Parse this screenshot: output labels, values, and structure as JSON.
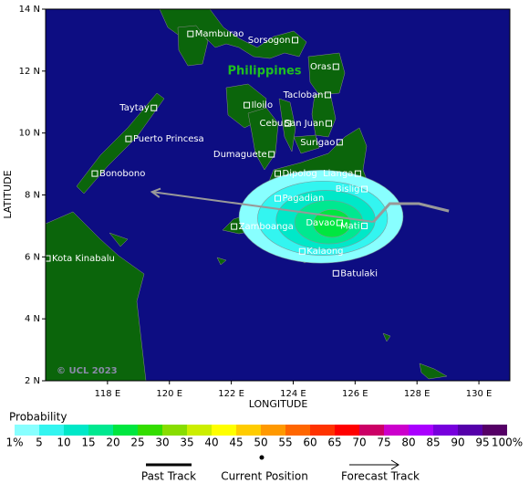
{
  "map": {
    "xlim": [
      116,
      131
    ],
    "ylim": [
      2,
      14
    ],
    "xticks": [
      {
        "value": 118,
        "label": "118 E"
      },
      {
        "value": 120,
        "label": "120 E"
      },
      {
        "value": 122,
        "label": "122 E"
      },
      {
        "value": 124,
        "label": "124 E"
      },
      {
        "value": 126,
        "label": "126 E"
      },
      {
        "value": 128,
        "label": "128 E"
      },
      {
        "value": 130,
        "label": "130 E"
      }
    ],
    "yticks": [
      {
        "value": 2,
        "label": "2 N"
      },
      {
        "value": 4,
        "label": "4 N"
      },
      {
        "value": 6,
        "label": "6 N"
      },
      {
        "value": 8,
        "label": "8 N"
      },
      {
        "value": 10,
        "label": "10 N"
      },
      {
        "value": 12,
        "label": "12 N"
      },
      {
        "value": 14,
        "label": "14 N"
      }
    ],
    "xlabel": "LONGITUDE",
    "ylabel": "LATITUDE",
    "country_label": "Philippines",
    "copyright": "© UCL 2023",
    "cities": [
      {
        "name": "Mamburao",
        "lon": 120.68,
        "lat": 13.2
      },
      {
        "name": "Sorsogon",
        "lon": 124.06,
        "lat": 13.0
      },
      {
        "name": "Oras",
        "lon": 125.38,
        "lat": 12.14
      },
      {
        "name": "Tacloban",
        "lon": 125.12,
        "lat": 11.23
      },
      {
        "name": "Taytay",
        "lon": 119.5,
        "lat": 10.81
      },
      {
        "name": "Iloilo",
        "lon": 122.5,
        "lat": 10.9
      },
      {
        "name": "Cebu",
        "lon": 123.82,
        "lat": 10.31
      },
      {
        "name": "San Juan",
        "lon": 125.15,
        "lat": 10.31
      },
      {
        "name": "Puerto Princesa",
        "lon": 118.68,
        "lat": 9.81
      },
      {
        "name": "Surigao",
        "lon": 125.5,
        "lat": 9.7
      },
      {
        "name": "Dumaguete",
        "lon": 123.3,
        "lat": 9.31
      },
      {
        "name": "Bonobono",
        "lon": 117.59,
        "lat": 8.69
      },
      {
        "name": "Dipolog",
        "lon": 123.5,
        "lat": 8.69
      },
      {
        "name": "Lianga",
        "lon": 126.09,
        "lat": 8.69
      },
      {
        "name": "Bislig",
        "lon": 126.3,
        "lat": 8.19
      },
      {
        "name": "Pagadian",
        "lon": 123.5,
        "lat": 7.89
      },
      {
        "name": "Zamboanga",
        "lon": 122.09,
        "lat": 6.98
      },
      {
        "name": "Davao",
        "lon": 125.5,
        "lat": 7.1
      },
      {
        "name": "Mati",
        "lon": 126.3,
        "lat": 7.0
      },
      {
        "name": "Kalaong",
        "lon": 124.29,
        "lat": 6.18
      },
      {
        "name": "Kota Kinabalu",
        "lon": 116.06,
        "lat": 5.95
      },
      {
        "name": "Batulaki",
        "lon": 125.38,
        "lat": 5.47
      }
    ],
    "probability_areas": [
      {
        "min": 1,
        "lon": 124.9,
        "lat": 7.3,
        "rx": 2.65,
        "ry": 1.5
      },
      {
        "min": 5,
        "lon": 124.95,
        "lat": 7.25,
        "rx": 2.1,
        "ry": 1.2
      },
      {
        "min": 10,
        "lon": 125.05,
        "lat": 7.2,
        "rx": 1.6,
        "ry": 0.95
      },
      {
        "min": 15,
        "lon": 125.15,
        "lat": 7.12,
        "rx": 1.1,
        "ry": 0.7
      },
      {
        "min": 20,
        "lon": 125.25,
        "lat": 7.08,
        "rx": 0.6,
        "ry": 0.45
      }
    ],
    "past_track": {
      "lon": [
        129.03,
        128.06,
        127.12,
        126.59
      ],
      "lat": [
        7.48,
        7.72,
        7.72,
        7.13
      ]
    },
    "forecast_track": {
      "lon": [
        126.59,
        119.44
      ],
      "lat": [
        7.13,
        8.1
      ]
    }
  },
  "legend": {
    "title": "Probability",
    "ticks": [
      {
        "value": 1,
        "label": "1%"
      },
      5,
      10,
      15,
      20,
      25,
      30,
      35,
      40,
      45,
      50,
      55,
      60,
      65,
      70,
      75,
      80,
      85,
      90,
      95,
      {
        "value": 100,
        "label": "100%"
      }
    ],
    "colors": [
      "#88ffff",
      "#33f5f0",
      "#00e8c8",
      "#00e890",
      "#00e640",
      "#33dd00",
      "#88dd00",
      "#ccee00",
      "#ffff00",
      "#ffcc00",
      "#ff9900",
      "#ff6600",
      "#ff3300",
      "#ff0000",
      "#cc0066",
      "#cc00cc",
      "#aa00ff",
      "#7700dd",
      "#5500aa",
      "#550066"
    ],
    "past_track": "Past Track",
    "current_position": "Current Position",
    "forecast_track": "Forecast Track"
  }
}
